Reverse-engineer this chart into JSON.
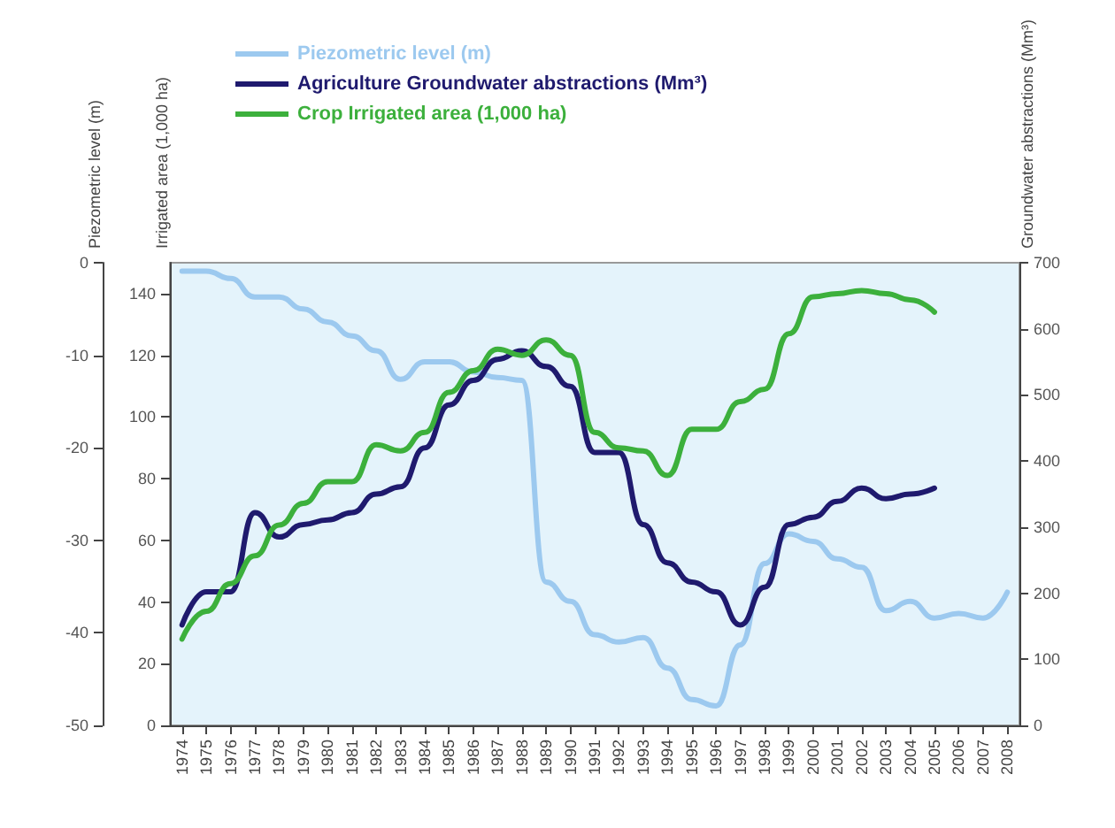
{
  "chart_data": {
    "type": "line",
    "ylabel": "Irrigated area (1,000 ha)",
    "y2label": "Groundwater abstractions (Mm³)",
    "y3label": "Piezometric level (m)",
    "categories": [
      "1974",
      "1975",
      "1976",
      "1977",
      "1978",
      "1979",
      "1980",
      "1981",
      "1982",
      "1983",
      "1984",
      "1985",
      "1986",
      "1987",
      "1988",
      "1989",
      "1990",
      "1991",
      "1992",
      "1993",
      "1994",
      "1995",
      "1996",
      "1997",
      "1998",
      "1999",
      "2000",
      "2001",
      "2002",
      "2003",
      "2004",
      "2005",
      "2006",
      "2007",
      "2008"
    ],
    "ylim": [
      0,
      150
    ],
    "yticks": [
      0,
      20,
      40,
      60,
      80,
      100,
      120,
      140
    ],
    "y2lim": [
      0,
      700
    ],
    "y2ticks": [
      0,
      100,
      200,
      300,
      400,
      500,
      600,
      700
    ],
    "y3lim": [
      -50,
      0
    ],
    "y3ticks": [
      -50,
      -40,
      -30,
      -20,
      -10,
      0
    ],
    "series": [
      {
        "name": "Piezometric level (m)",
        "color": "#9cc9ef",
        "axis": "y3",
        "values": [
          -0.9,
          -0.9,
          -1.7,
          -3.7,
          -3.7,
          -5.0,
          -6.4,
          -7.9,
          -9.5,
          -12.6,
          -10.7,
          -10.7,
          -11.8,
          -12.4,
          -12.7,
          -34.5,
          -36.6,
          -40.2,
          -41.0,
          -40.5,
          -43.8,
          -47.2,
          -47.9,
          -41.3,
          -32.5,
          -29.3,
          -30.1,
          -32.0,
          -32.9,
          -37.6,
          -36.6,
          -38.4,
          -37.9,
          -38.4,
          -35.6
        ]
      },
      {
        "name": "Agriculture Groundwater abstractions (Mm³)",
        "color": "#1f1a6e",
        "axis": "y2",
        "values": [
          152,
          202,
          202,
          322,
          285,
          304,
          311,
          322,
          350,
          361,
          420,
          485,
          522,
          554,
          567,
          543,
          513,
          413,
          413,
          304,
          246,
          217,
          202,
          152,
          209,
          304,
          315,
          339,
          359,
          343,
          350,
          359,
          null,
          null,
          null
        ]
      },
      {
        "name": "Crop Irrigated area (1,000 ha)",
        "color": "#3cb03c",
        "axis": "y",
        "values": [
          28,
          37,
          46,
          55,
          65,
          72,
          79,
          79,
          91,
          89,
          95,
          108,
          115,
          122,
          120,
          125,
          120,
          95,
          90,
          89,
          81,
          96,
          96,
          105,
          109,
          127,
          139,
          140,
          141,
          140,
          138,
          134,
          null,
          null,
          null
        ]
      }
    ],
    "grid": false,
    "legend": "top",
    "line_style": "solid",
    "marker": "none"
  }
}
